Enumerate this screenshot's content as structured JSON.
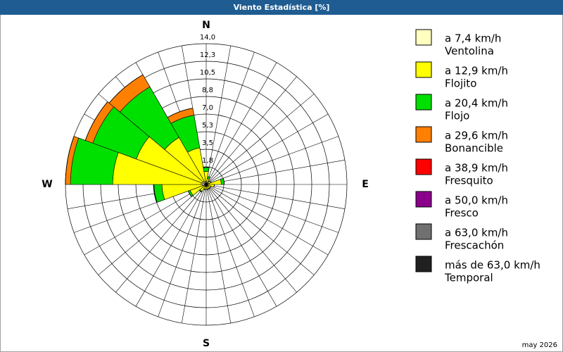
{
  "chart_data": {
    "type": "windrose",
    "title": "Viento Estadística [%]",
    "footer": "may 2026",
    "directions": [
      0,
      20,
      40,
      60,
      80,
      100,
      120,
      140,
      160,
      180,
      200,
      220,
      240,
      260,
      280,
      300,
      320,
      340
    ],
    "compass": [
      {
        "value": 0,
        "label": "N"
      },
      {
        "value": 90,
        "label": "E"
      },
      {
        "value": 180,
        "label": "S"
      },
      {
        "value": 270,
        "label": "W"
      }
    ],
    "ylim": [
      0,
      14
    ],
    "yticks": [
      {
        "value": 1.75,
        "label": "1,8"
      },
      {
        "value": 3.5,
        "label": "3,5"
      },
      {
        "value": 5.25,
        "label": "5,3"
      },
      {
        "value": 7,
        "label": "7,0"
      },
      {
        "value": 8.75,
        "label": "8,8"
      },
      {
        "value": 10.5,
        "label": "10,5"
      },
      {
        "value": 12.25,
        "label": "12,3"
      },
      {
        "value": 14,
        "label": "14,0"
      }
    ],
    "grid": true,
    "series": [
      {
        "name": "a 7,4 km/h",
        "class": "Ventolina",
        "color": "#ffffc0",
        "values": [
          0.3,
          0.2,
          0.2,
          0.2,
          0.3,
          0.2,
          0.2,
          0.2,
          0.2,
          0.2,
          0.2,
          0.2,
          0.3,
          0.4,
          0.5,
          0.4,
          0.4,
          0.3
        ]
      },
      {
        "name": "a 12,9 km/h",
        "class": "Flojito",
        "color": "#ffff00",
        "values": [
          1.0,
          0.4,
          0.2,
          0.3,
          1.2,
          0.6,
          0.3,
          0.3,
          0.3,
          0.3,
          0.3,
          0.6,
          1.4,
          4.0,
          8.8,
          7.0,
          5.0,
          3.4
        ]
      },
      {
        "name": "a 20,4 km/h",
        "class": "Flojo",
        "color": "#00e000",
        "values": [
          0.4,
          0.2,
          0,
          0,
          0.3,
          0,
          0,
          0,
          0,
          0,
          0,
          0.1,
          0.2,
          0.8,
          4.2,
          4.6,
          5.8,
          3.3
        ]
      },
      {
        "name": "a 29,6 km/h",
        "class": "Bonancible",
        "color": "#ff8000",
        "values": [
          0,
          0,
          0,
          0,
          0,
          0,
          0,
          0,
          0,
          0,
          0,
          0,
          0,
          0,
          0.5,
          0.8,
          1.4,
          0.7
        ]
      },
      {
        "name": "a 38,9 km/h",
        "class": "Fresquito",
        "color": "#ff0000",
        "values": [
          0,
          0,
          0,
          0,
          0,
          0,
          0,
          0,
          0,
          0,
          0,
          0,
          0,
          0,
          0,
          0,
          0,
          0
        ]
      },
      {
        "name": "a 50,0 km/h",
        "class": "Fresco",
        "color": "#8b008b",
        "values": [
          0,
          0,
          0,
          0,
          0,
          0,
          0,
          0,
          0,
          0,
          0,
          0,
          0,
          0,
          0,
          0,
          0,
          0
        ]
      },
      {
        "name": "a 63,0 km/h",
        "class": "Frescachón",
        "color": "#707070",
        "values": [
          0,
          0,
          0,
          0,
          0,
          0,
          0,
          0,
          0,
          0,
          0,
          0,
          0,
          0,
          0,
          0,
          0,
          0
        ]
      },
      {
        "name": "más de 63,0 km/h",
        "class": "Temporal",
        "color": "#202020",
        "values": [
          0,
          0,
          0,
          0,
          0,
          0,
          0,
          0,
          0,
          0,
          0,
          0,
          0,
          0,
          0,
          0,
          0,
          0
        ]
      }
    ]
  }
}
